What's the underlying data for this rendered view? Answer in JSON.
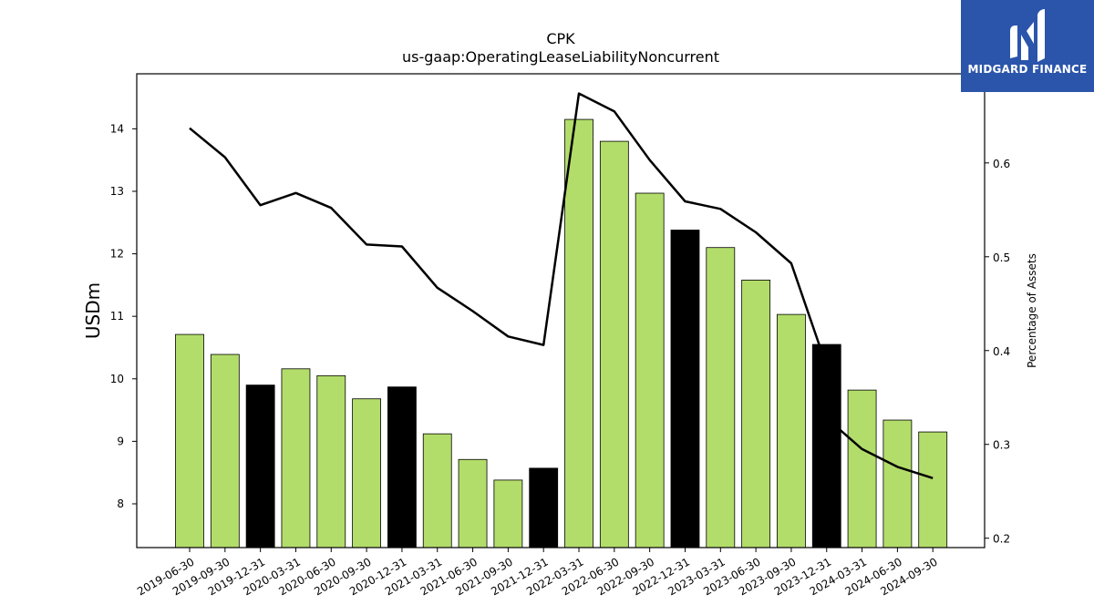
{
  "chart_data": {
    "type": "bar",
    "title": "CPK",
    "subtitle": "us-gaap:OperatingLeaseLiabilityNoncurrent",
    "ylabel": "USDm",
    "y2label": "Percentage of Assets",
    "ylim": [
      7.3,
      14.88
    ],
    "y2lim": [
      0.19,
      0.695
    ],
    "yticks": [
      8,
      9,
      10,
      11,
      12,
      13,
      14
    ],
    "y2ticks": [
      0.2,
      0.3,
      0.4,
      0.5,
      0.6
    ],
    "categories": [
      "2019-06-30",
      "2019-09-30",
      "2019-12-31",
      "2020-03-31",
      "2020-06-30",
      "2020-09-30",
      "2020-12-31",
      "2021-03-31",
      "2021-06-30",
      "2021-09-30",
      "2021-12-31",
      "2022-03-31",
      "2022-06-30",
      "2022-09-30",
      "2022-12-31",
      "2023-03-31",
      "2023-06-30",
      "2023-09-30",
      "2023-12-31",
      "2024-03-31",
      "2024-06-30",
      "2024-09-30"
    ],
    "values": [
      10.71,
      10.39,
      9.9,
      10.16,
      10.05,
      9.68,
      9.87,
      9.12,
      8.71,
      8.38,
      8.57,
      14.15,
      13.8,
      12.97,
      12.38,
      12.1,
      11.58,
      11.03,
      10.55,
      9.82,
      9.34,
      9.15
    ],
    "bar_colors": [
      "#b3dd6b",
      "#b3dd6b",
      "#000000",
      "#b3dd6b",
      "#b3dd6b",
      "#b3dd6b",
      "#000000",
      "#b3dd6b",
      "#b3dd6b",
      "#b3dd6b",
      "#000000",
      "#b3dd6b",
      "#b3dd6b",
      "#b3dd6b",
      "#000000",
      "#b3dd6b",
      "#b3dd6b",
      "#b3dd6b",
      "#000000",
      "#b3dd6b",
      "#b3dd6b",
      "#b3dd6b"
    ],
    "line_series": {
      "values": [
        0.637,
        0.606,
        0.555,
        0.568,
        0.552,
        0.513,
        0.511,
        0.467,
        0.442,
        0.415,
        0.406,
        0.674,
        0.655,
        0.603,
        0.559,
        0.551,
        0.526,
        0.493,
        0.383,
        0.318,
        0.295,
        0.276,
        0.264
      ],
      "x_index": [
        0,
        1,
        2,
        3,
        4,
        5,
        6,
        7,
        8,
        9,
        10,
        11,
        12,
        13,
        14,
        15,
        16,
        17,
        18,
        18.3,
        19,
        20,
        21
      ],
      "color": "#000000"
    },
    "grid": false
  },
  "logo": {
    "text": "MIDGARD FINANCE",
    "bg_color": "#2b55ab",
    "icon": "midgard-m-logo-icon"
  }
}
